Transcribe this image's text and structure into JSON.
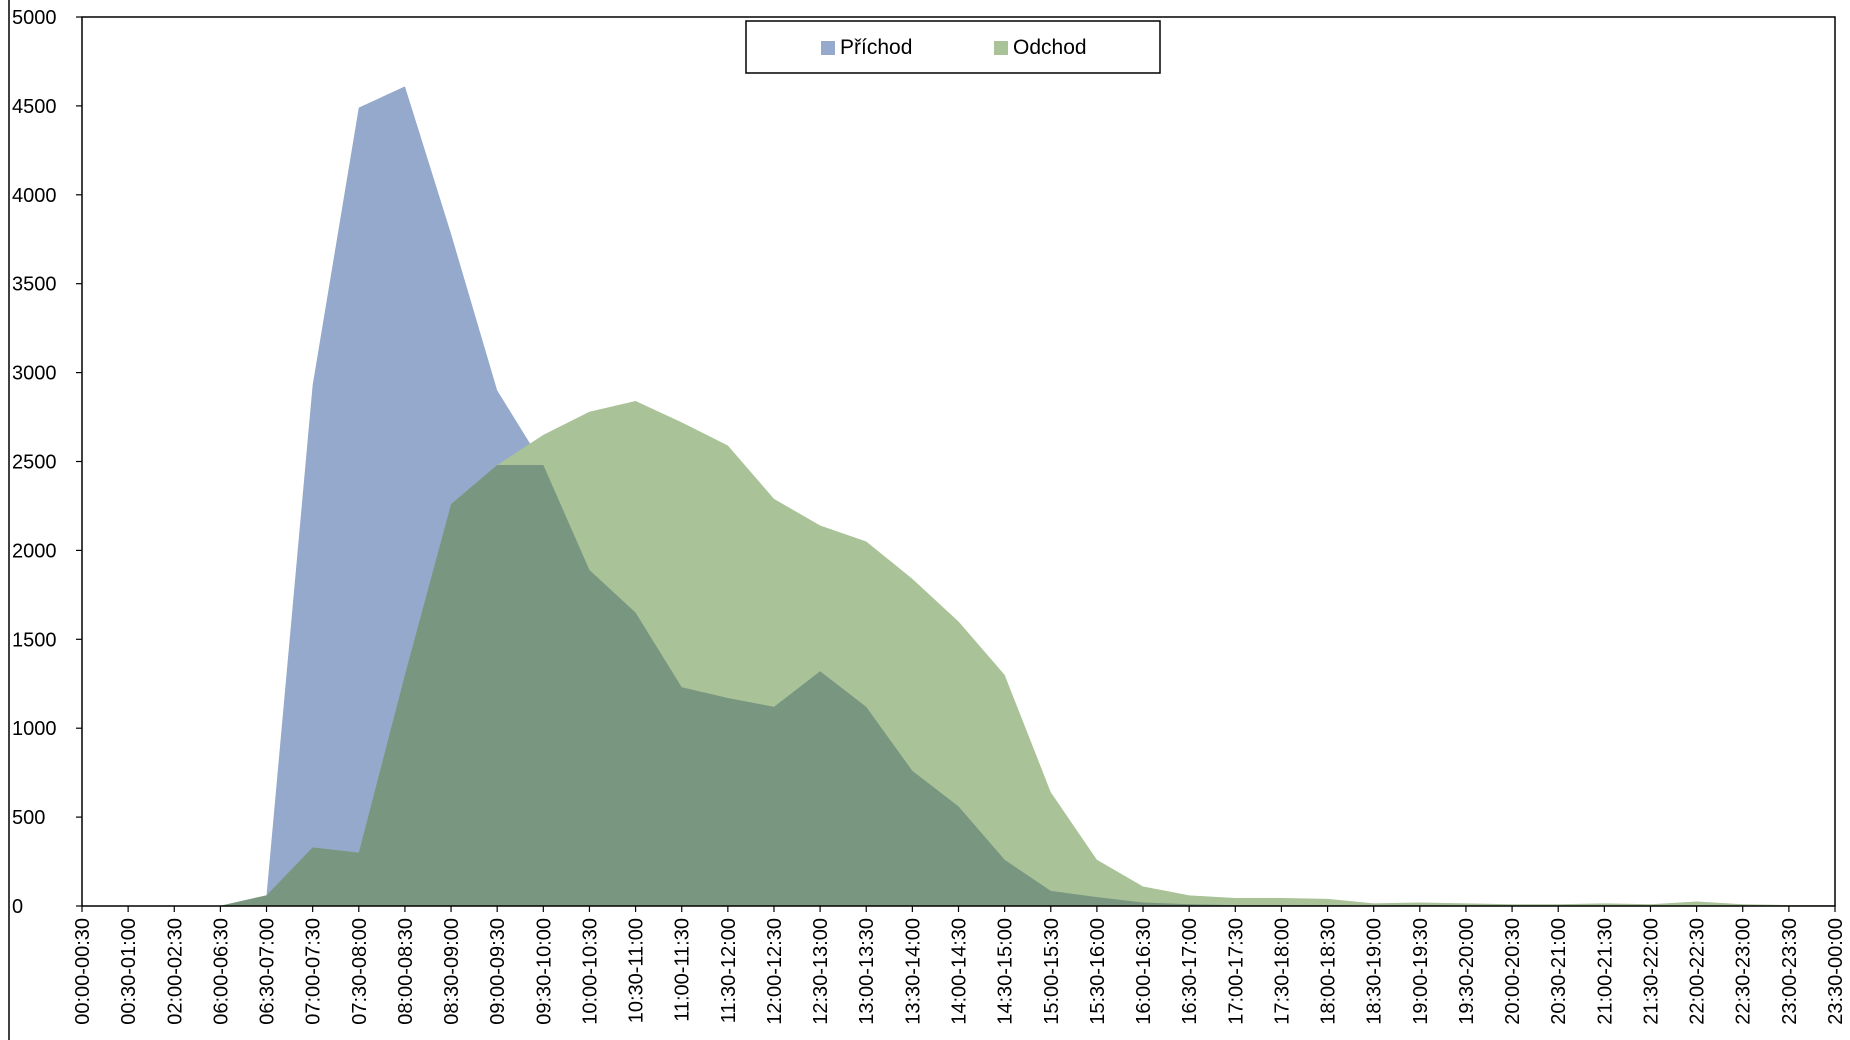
{
  "chart_data": {
    "type": "area",
    "title": "",
    "xlabel": "",
    "ylabel": "",
    "ylim": [
      0,
      5000
    ],
    "yticks": [
      "0",
      "500",
      "1000",
      "1500",
      "2000",
      "2500",
      "3000",
      "3500",
      "4000",
      "4500",
      "5000"
    ],
    "grid": false,
    "legend_position": "top-center",
    "categories": [
      "00:00-00:30",
      "00:30-01:00",
      "02:00-02:30",
      "06:00-06:30",
      "06:30-07:00",
      "07:00-07:30",
      "07:30-08:00",
      "08:00-08:30",
      "08:30-09:00",
      "09:00-09:30",
      "09:30-10:00",
      "10:00-10:30",
      "10:30-11:00",
      "11:00-11:30",
      "11:30-12:00",
      "12:00-12:30",
      "12:30-13:00",
      "13:00-13:30",
      "13:30-14:00",
      "14:00-14:30",
      "14:30-15:00",
      "15:00-15:30",
      "15:30-16:00",
      "16:00-16:30",
      "16:30-17:00",
      "17:00-17:30",
      "17:30-18:00",
      "18:00-18:30",
      "18:30-19:00",
      "19:00-19:30",
      "19:30-20:00",
      "20:00-20:30",
      "20:30-21:00",
      "21:00-21:30",
      "21:30-22:00",
      "22:00-22:30",
      "22:30-23:00",
      "23:00-23:30",
      "23:30-00:00"
    ],
    "series": [
      {
        "name": "Příchod",
        "color": "#94a9cb",
        "values": [
          2,
          1,
          1,
          1,
          60,
          2930,
          4490,
          4610,
          3780,
          2900,
          2480,
          1890,
          1650,
          1230,
          1170,
          1120,
          1320,
          1120,
          760,
          560,
          260,
          85,
          50,
          20,
          10,
          5,
          5,
          5,
          3,
          5,
          3,
          2,
          2,
          3,
          2,
          3,
          2,
          2,
          1
        ]
      },
      {
        "name": "Odchod",
        "color": "#a9c298",
        "values": [
          0,
          0,
          0,
          2,
          60,
          330,
          300,
          1300,
          2260,
          2480,
          2650,
          2780,
          2840,
          2720,
          2590,
          2290,
          2140,
          2050,
          1840,
          1600,
          1300,
          640,
          260,
          110,
          60,
          45,
          45,
          40,
          15,
          20,
          15,
          10,
          10,
          15,
          10,
          25,
          10,
          5,
          5
        ]
      }
    ],
    "overlap_color": "#789680"
  }
}
